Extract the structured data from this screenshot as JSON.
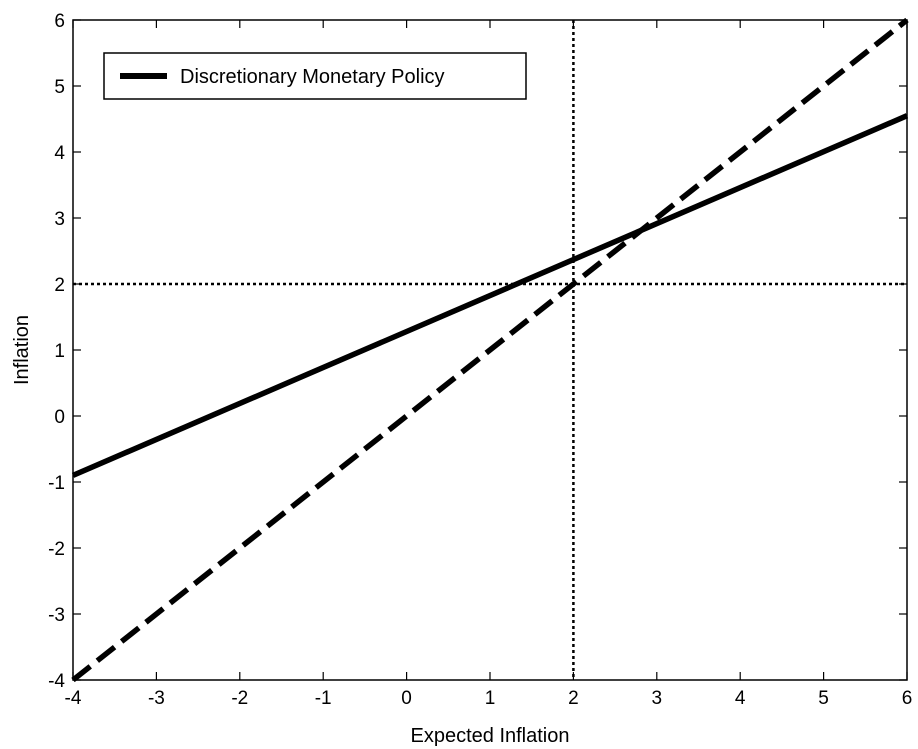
{
  "chart_data": {
    "type": "line",
    "title": "",
    "xlabel": "Expected Inflation",
    "ylabel": "Inflation",
    "xlim": [
      -4,
      6
    ],
    "ylim": [
      -4,
      6
    ],
    "xticks": [
      "-4",
      "-3",
      "-2",
      "-1",
      "0",
      "1",
      "2",
      "3",
      "4",
      "5",
      "6"
    ],
    "yticks": [
      "-4",
      "-3",
      "-2",
      "-1",
      "0",
      "1",
      "2",
      "3",
      "4",
      "5",
      "6"
    ],
    "grid": false,
    "legend": {
      "placement": "top-left",
      "entries": [
        "Discretionary Monetary Policy"
      ]
    },
    "series": [
      {
        "name": "Discretionary Monetary Policy",
        "style": "solid",
        "color": "#000000",
        "x": [
          -4,
          6
        ],
        "y": [
          -0.9,
          4.55
        ]
      },
      {
        "style": "dashed",
        "color": "#000000",
        "x": [
          -4,
          6
        ],
        "y": [
          -4,
          6
        ]
      }
    ],
    "reference_lines": [
      {
        "orientation": "vertical",
        "value": 2,
        "style": "dotted"
      },
      {
        "orientation": "horizontal",
        "value": 2,
        "style": "dotted"
      }
    ]
  }
}
